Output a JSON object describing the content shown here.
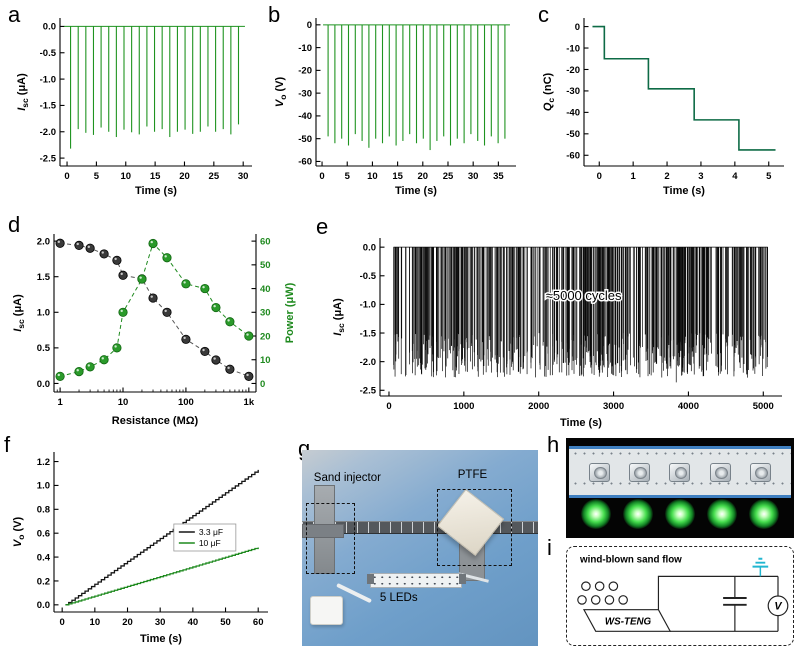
{
  "figure": {
    "panel_labels": {
      "a": "a",
      "b": "b",
      "c": "c",
      "d": "d",
      "e": "e",
      "f": "f",
      "g": "g",
      "h": "h",
      "i": "i"
    }
  },
  "photos": {
    "setup": {
      "labels": {
        "sand_injector": "Sand injector",
        "ptfe": "PTFE",
        "leds": "5 LEDs"
      }
    }
  },
  "schematic": {
    "title": "wind-blown sand flow",
    "device": "WS-TENG",
    "voltmeter": "V",
    "ground_color": "#21b6d0"
  },
  "chart_data": [
    {
      "panel": "a",
      "type": "spikes",
      "xlabel": "Time (s)",
      "ylabel": {
        "pre": "I",
        "sub": "sc",
        "post": " (μA)",
        "italic": true
      },
      "xlim": [
        -1.2,
        31.5
      ],
      "ylim": [
        -2.65,
        0.16
      ],
      "xticks": [
        0,
        5,
        10,
        15,
        20,
        25,
        30
      ],
      "xtick_labels": [
        "0",
        "5",
        "10",
        "15",
        "20",
        "25",
        "30"
      ],
      "yticks": [
        0,
        -0.5,
        -1,
        -1.5,
        -2,
        -2.5
      ],
      "ytick_labels": [
        "0.0",
        "-0.5",
        "-1.0",
        "-1.5",
        "-2.0",
        "-2.5"
      ],
      "color": "#1f9320",
      "baseline": [
        -0.5,
        30.3
      ],
      "spike_times": [
        0.6,
        1.9,
        3.2,
        4.5,
        5.8,
        7.1,
        8.4,
        9.7,
        11,
        12.3,
        13.6,
        14.9,
        16.2,
        17.5,
        18.8,
        20.1,
        21.4,
        22.7,
        24,
        25.3,
        26.6,
        27.9,
        29.2
      ],
      "spike_depths": [
        -2.32,
        -1.95,
        -2.02,
        -2.06,
        -1.92,
        -2,
        -2.1,
        -1.96,
        -2.01,
        -2.05,
        -1.9,
        -2,
        -1.95,
        -2.1,
        -2,
        -1.96,
        -2.04,
        -2,
        -1.9,
        -2,
        -1.95,
        -2.05,
        -1.86
      ],
      "margins": {
        "l": 46,
        "r": 8,
        "t": 10,
        "b": 32
      }
    },
    {
      "panel": "b",
      "type": "spikes",
      "xlabel": "Time (s)",
      "ylabel": {
        "pre": "V",
        "sub": "o",
        "post": " (V)",
        "italic": true
      },
      "xlim": [
        -1.2,
        38.5
      ],
      "ylim": [
        -62,
        3
      ],
      "xticks": [
        0,
        5,
        10,
        15,
        20,
        25,
        30,
        35
      ],
      "xtick_labels": [
        "0",
        "5",
        "10",
        "15",
        "20",
        "25",
        "30",
        "35"
      ],
      "yticks": [
        0,
        -10,
        -20,
        -30,
        -40,
        -50,
        -60
      ],
      "ytick_labels": [
        "0",
        "-10",
        "-20",
        "-30",
        "-40",
        "-50",
        "-60"
      ],
      "color": "#1f9320",
      "baseline": [
        0.2,
        37.3
      ],
      "spike_times": [
        1.2,
        2.55,
        3.9,
        5.25,
        6.6,
        7.95,
        9.3,
        10.65,
        12,
        13.35,
        14.7,
        16.05,
        17.4,
        18.75,
        20.1,
        21.45,
        22.8,
        24.15,
        25.5,
        26.85,
        28.2,
        29.55,
        30.9,
        32.25,
        33.6,
        34.95,
        36.3
      ],
      "spike_depths": [
        -49,
        -52,
        -50,
        -53,
        -48,
        -51,
        -54,
        -50,
        -52,
        -49,
        -53,
        -51,
        -48,
        -52,
        -50,
        -55,
        -51,
        -49,
        -53,
        -50,
        -52,
        -48,
        -51,
        -53,
        -49,
        -52,
        -50
      ],
      "margins": {
        "l": 44,
        "r": 8,
        "t": 10,
        "b": 32
      }
    },
    {
      "panel": "c",
      "type": "staircase",
      "xlabel": "Time (s)",
      "ylabel": {
        "pre": "Q",
        "sub": "c",
        "post": " (nC)",
        "italic": true
      },
      "xlim": [
        -0.45,
        5.45
      ],
      "ylim": [
        -65,
        4
      ],
      "xticks": [
        0,
        1,
        2,
        3,
        4,
        5
      ],
      "xtick_labels": [
        "0",
        "1",
        "2",
        "3",
        "4",
        "5"
      ],
      "yticks": [
        0,
        -10,
        -20,
        -30,
        -40,
        -50,
        -60
      ],
      "ytick_labels": [
        "0",
        "-10",
        "-20",
        "-30",
        "-40",
        "-50",
        "-60"
      ],
      "color": "#0e6b46",
      "start": [
        -0.2,
        0
      ],
      "steps": [
        {
          "t": 0.15,
          "v": -15
        },
        {
          "t": 1.45,
          "v": -29
        },
        {
          "t": 2.8,
          "v": -43.5
        },
        {
          "t": 4.12,
          "v": -57.5
        }
      ],
      "end_t": 5.2,
      "margins": {
        "l": 44,
        "r": 10,
        "t": 10,
        "b": 32
      }
    },
    {
      "panel": "d",
      "type": "dual_scatter",
      "xlog": true,
      "xlabel": "Resistance (MΩ)",
      "ylabel": {
        "pre": "I",
        "sub": "sc",
        "post": " (μA)",
        "italic": true
      },
      "y2label": {
        "pre": "Power (μW)",
        "italic": false
      },
      "y2color": "#1f8a1f",
      "xlim": [
        0.8,
        1300
      ],
      "ylim": [
        -0.12,
        2.1
      ],
      "y2lim": [
        -3.6,
        63
      ],
      "xticks": [
        1,
        10,
        100,
        1000
      ],
      "xtick_labels": [
        "1",
        "10",
        "100",
        "1k"
      ],
      "yticks": [
        0,
        0.5,
        1,
        1.5,
        2
      ],
      "ytick_labels": [
        "0.0",
        "0.5",
        "1.0",
        "1.5",
        "2.0"
      ],
      "y2ticks": [
        0,
        10,
        20,
        30,
        40,
        50,
        60
      ],
      "y2tick_labels": [
        "0",
        "10",
        "20",
        "30",
        "40",
        "50",
        "60"
      ],
      "series": [
        {
          "axis": "left",
          "x": [
            1,
            2,
            3,
            5,
            8,
            10,
            20,
            30,
            50,
            100,
            200,
            300,
            500,
            1000
          ],
          "y": [
            1.97,
            1.94,
            1.9,
            1.82,
            1.73,
            1.52,
            1.47,
            1.2,
            1,
            0.62,
            0.45,
            0.33,
            0.2,
            0.1
          ],
          "line_color": "#555555",
          "fill": "#3a3a3a",
          "stroke": "#000000",
          "shine": "#d9d9d9"
        },
        {
          "axis": "right",
          "x": [
            1,
            2,
            3,
            5,
            8,
            10,
            20,
            30,
            50,
            100,
            200,
            300,
            500,
            1000
          ],
          "y": [
            3,
            5,
            7,
            10,
            15,
            30,
            44,
            59,
            53,
            42,
            40,
            32,
            26,
            20
          ],
          "line_color": "#1f8a1f",
          "fill": "#2a9a2a",
          "stroke": "#116611",
          "shine": "#dff3df"
        }
      ],
      "margins": {
        "l": 44,
        "r": 42,
        "t": 8,
        "b": 36
      }
    },
    {
      "panel": "e",
      "type": "noise",
      "xlabel": "Time (s)",
      "ylabel": {
        "pre": "I",
        "sub": "sc",
        "post": " (μA)",
        "italic": true
      },
      "xlim": [
        -120,
        5250
      ],
      "ylim": [
        -2.6,
        0.16
      ],
      "xticks": [
        0,
        1000,
        2000,
        3000,
        4000,
        5000
      ],
      "xtick_labels": [
        "0",
        "1000",
        "2000",
        "3000",
        "4000",
        "5000"
      ],
      "yticks": [
        0,
        -0.5,
        -1,
        -1.5,
        -2,
        -2.5
      ],
      "ytick_labels": [
        "0.0",
        "-0.5",
        "-1.0",
        "-1.5",
        "-2.0",
        "-2.5"
      ],
      "color": "#0a0a0a",
      "seed": 7,
      "n": 560,
      "x_range": [
        60,
        5060
      ],
      "depth_range": [
        -1.5,
        -2.28
      ],
      "annotation": {
        "text": "≈5000 cycles",
        "x": 2600,
        "y": -0.92
      },
      "margins": {
        "l": 50,
        "r": 12,
        "t": 10,
        "b": 34
      }
    },
    {
      "panel": "f",
      "type": "ramps",
      "xlabel": "Time (s)",
      "ylabel": {
        "pre": "V",
        "sub": "o",
        "post": " (V)",
        "italic": true
      },
      "xlim": [
        -2.5,
        63
      ],
      "ylim": [
        -0.06,
        1.28
      ],
      "xticks": [
        0,
        10,
        20,
        30,
        40,
        50,
        60
      ],
      "xtick_labels": [
        "0",
        "10",
        "20",
        "30",
        "40",
        "50",
        "60"
      ],
      "yticks": [
        0,
        0.2,
        0.4,
        0.6,
        0.8,
        1,
        1.2
      ],
      "ytick_labels": [
        "0.0",
        "0.2",
        "0.4",
        "0.6",
        "0.8",
        "1.0",
        "1.2"
      ],
      "color": "#161616",
      "series": [
        {
          "name": "3.3 μF",
          "color": "#161616",
          "t0": 1,
          "t1": 60,
          "end": 1.13
        },
        {
          "name": "10 μF",
          "color": "#1f8a1f",
          "t0": 1,
          "t1": 60,
          "end": 0.48
        }
      ],
      "legend": {
        "x": 0.56,
        "y": 0.45
      },
      "margins": {
        "l": 44,
        "r": 12,
        "t": 8,
        "b": 34
      }
    }
  ]
}
